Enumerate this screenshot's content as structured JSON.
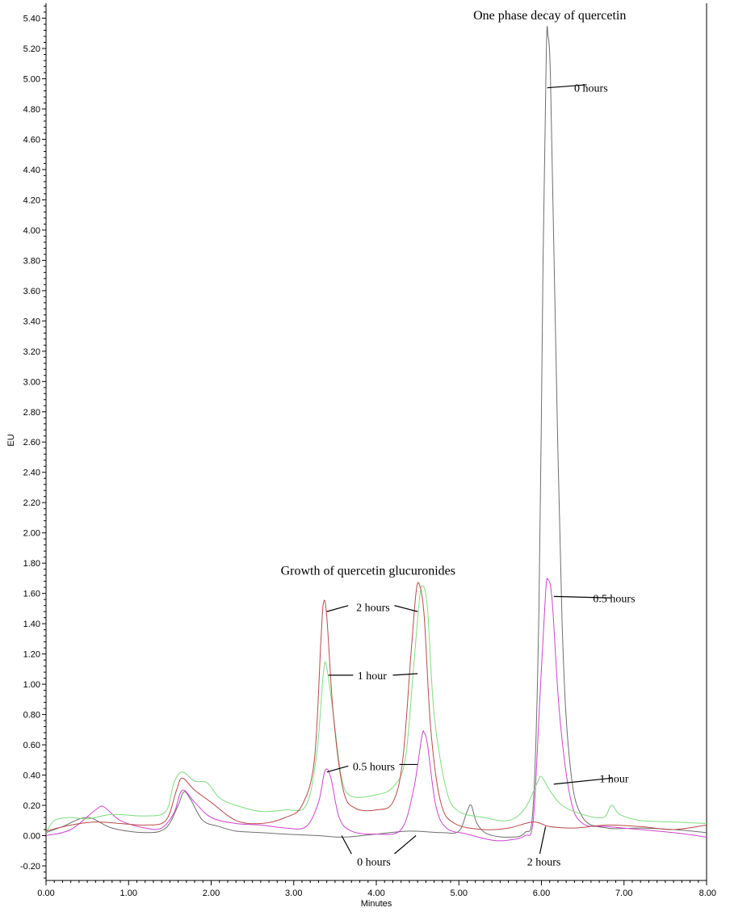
{
  "chart_data": {
    "type": "line",
    "title": "",
    "xlabel": "Minutes",
    "ylabel": "EU",
    "xlim": [
      0,
      8
    ],
    "ylim": [
      -0.28,
      5.5
    ],
    "x_ticks": [
      "0.00",
      "1.00",
      "2.00",
      "3.00",
      "4.00",
      "5.00",
      "6.00",
      "7.00",
      "8.00"
    ],
    "y_ticks": [
      "-0.20",
      "0.00",
      "0.20",
      "0.40",
      "0.60",
      "0.80",
      "1.00",
      "1.20",
      "1.40",
      "1.60",
      "1.80",
      "2.00",
      "2.20",
      "2.40",
      "2.60",
      "2.80",
      "3.00",
      "3.20",
      "3.40",
      "3.60",
      "3.80",
      "4.00",
      "4.20",
      "4.40",
      "4.60",
      "4.80",
      "5.00",
      "5.20",
      "5.40"
    ],
    "grid": false,
    "series": [
      {
        "color": "#6e6e6e",
        "points": [
          [
            0,
            0.02
          ],
          [
            0.2,
            0.06
          ],
          [
            0.5,
            0.12
          ],
          [
            0.8,
            0.05
          ],
          [
            1.2,
            0.02
          ],
          [
            1.45,
            0.05
          ],
          [
            1.6,
            0.2
          ],
          [
            1.67,
            0.29
          ],
          [
            1.75,
            0.24
          ],
          [
            1.9,
            0.1
          ],
          [
            2.1,
            0.06
          ],
          [
            2.3,
            0.03
          ],
          [
            2.6,
            0.02
          ],
          [
            2.9,
            0.01
          ],
          [
            3.3,
            0.0
          ],
          [
            3.6,
            -0.01
          ],
          [
            4.0,
            0.01
          ],
          [
            4.4,
            0.03
          ],
          [
            4.8,
            0.02
          ],
          [
            5.0,
            0.03
          ],
          [
            5.1,
            0.16
          ],
          [
            5.15,
            0.2
          ],
          [
            5.22,
            0.08
          ],
          [
            5.35,
            0.01
          ],
          [
            5.6,
            -0.01
          ],
          [
            5.8,
            0.02
          ],
          [
            5.9,
            0.2
          ],
          [
            5.97,
            1.5
          ],
          [
            6.02,
            3.8
          ],
          [
            6.06,
            5.2
          ],
          [
            6.08,
            5.28
          ],
          [
            6.11,
            5.0
          ],
          [
            6.16,
            3.6
          ],
          [
            6.25,
            1.4
          ],
          [
            6.35,
            0.45
          ],
          [
            6.5,
            0.12
          ],
          [
            6.8,
            0.05
          ],
          [
            7.2,
            0.05
          ],
          [
            7.6,
            0.04
          ],
          [
            8.0,
            0.02
          ]
        ]
      },
      {
        "color": "#cc44cc",
        "points": [
          [
            0,
            0.0
          ],
          [
            0.3,
            0.04
          ],
          [
            0.6,
            0.17
          ],
          [
            0.7,
            0.19
          ],
          [
            0.9,
            0.1
          ],
          [
            1.2,
            0.05
          ],
          [
            1.4,
            0.05
          ],
          [
            1.55,
            0.15
          ],
          [
            1.65,
            0.3
          ],
          [
            1.8,
            0.22
          ],
          [
            2.0,
            0.12
          ],
          [
            2.3,
            0.08
          ],
          [
            2.6,
            0.07
          ],
          [
            2.9,
            0.05
          ],
          [
            3.15,
            0.06
          ],
          [
            3.3,
            0.22
          ],
          [
            3.38,
            0.43
          ],
          [
            3.45,
            0.38
          ],
          [
            3.55,
            0.12
          ],
          [
            3.7,
            0.03
          ],
          [
            4.0,
            0.01
          ],
          [
            4.3,
            0.04
          ],
          [
            4.45,
            0.3
          ],
          [
            4.55,
            0.65
          ],
          [
            4.58,
            0.68
          ],
          [
            4.62,
            0.6
          ],
          [
            4.72,
            0.2
          ],
          [
            4.85,
            0.05
          ],
          [
            5.1,
            0.01
          ],
          [
            5.4,
            -0.03
          ],
          [
            5.6,
            -0.03
          ],
          [
            5.8,
            0.0
          ],
          [
            5.9,
            0.1
          ],
          [
            5.98,
            0.9
          ],
          [
            6.05,
            1.6
          ],
          [
            6.08,
            1.69
          ],
          [
            6.13,
            1.55
          ],
          [
            6.22,
            0.8
          ],
          [
            6.35,
            0.25
          ],
          [
            6.5,
            0.08
          ],
          [
            6.8,
            0.06
          ],
          [
            7.2,
            0.04
          ],
          [
            7.6,
            0.02
          ],
          [
            8.0,
            -0.01
          ]
        ]
      },
      {
        "color": "#7fdc7f",
        "points": [
          [
            0,
            0.02
          ],
          [
            0.1,
            0.1
          ],
          [
            0.3,
            0.12
          ],
          [
            0.5,
            0.11
          ],
          [
            0.8,
            0.14
          ],
          [
            1.2,
            0.13
          ],
          [
            1.45,
            0.16
          ],
          [
            1.55,
            0.35
          ],
          [
            1.65,
            0.42
          ],
          [
            1.8,
            0.36
          ],
          [
            1.95,
            0.35
          ],
          [
            2.1,
            0.25
          ],
          [
            2.3,
            0.2
          ],
          [
            2.6,
            0.16
          ],
          [
            2.9,
            0.17
          ],
          [
            3.15,
            0.2
          ],
          [
            3.28,
            0.55
          ],
          [
            3.36,
            1.08
          ],
          [
            3.4,
            1.11
          ],
          [
            3.48,
            0.8
          ],
          [
            3.58,
            0.38
          ],
          [
            3.7,
            0.26
          ],
          [
            4.0,
            0.27
          ],
          [
            4.2,
            0.32
          ],
          [
            4.35,
            0.5
          ],
          [
            4.45,
            1.1
          ],
          [
            4.52,
            1.55
          ],
          [
            4.56,
            1.65
          ],
          [
            4.62,
            1.5
          ],
          [
            4.7,
            0.8
          ],
          [
            4.85,
            0.3
          ],
          [
            5.0,
            0.16
          ],
          [
            5.3,
            0.12
          ],
          [
            5.6,
            0.1
          ],
          [
            5.8,
            0.18
          ],
          [
            5.95,
            0.35
          ],
          [
            6.0,
            0.39
          ],
          [
            6.1,
            0.3
          ],
          [
            6.25,
            0.2
          ],
          [
            6.5,
            0.14
          ],
          [
            6.75,
            0.12
          ],
          [
            6.85,
            0.2
          ],
          [
            6.95,
            0.14
          ],
          [
            7.2,
            0.1
          ],
          [
            7.6,
            0.09
          ],
          [
            8.0,
            0.08
          ]
        ]
      },
      {
        "color": "#b84a4a",
        "points": [
          [
            0,
            0.03
          ],
          [
            0.3,
            0.07
          ],
          [
            0.6,
            0.09
          ],
          [
            0.9,
            0.08
          ],
          [
            1.2,
            0.07
          ],
          [
            1.45,
            0.1
          ],
          [
            1.58,
            0.3
          ],
          [
            1.65,
            0.38
          ],
          [
            1.8,
            0.3
          ],
          [
            2.0,
            0.22
          ],
          [
            2.3,
            0.1
          ],
          [
            2.6,
            0.08
          ],
          [
            2.9,
            0.12
          ],
          [
            3.1,
            0.2
          ],
          [
            3.25,
            0.5
          ],
          [
            3.33,
            1.3
          ],
          [
            3.36,
            1.54
          ],
          [
            3.4,
            1.45
          ],
          [
            3.48,
            0.8
          ],
          [
            3.6,
            0.3
          ],
          [
            3.75,
            0.18
          ],
          [
            4.0,
            0.17
          ],
          [
            4.2,
            0.22
          ],
          [
            4.32,
            0.5
          ],
          [
            4.42,
            1.2
          ],
          [
            4.48,
            1.6
          ],
          [
            4.52,
            1.66
          ],
          [
            4.58,
            1.45
          ],
          [
            4.66,
            0.7
          ],
          [
            4.78,
            0.22
          ],
          [
            4.95,
            0.08
          ],
          [
            5.3,
            0.04
          ],
          [
            5.6,
            0.05
          ],
          [
            5.9,
            0.09
          ],
          [
            6.1,
            0.06
          ],
          [
            6.4,
            0.05
          ],
          [
            6.8,
            0.07
          ],
          [
            7.2,
            0.06
          ],
          [
            7.6,
            0.04
          ],
          [
            8.0,
            0.07
          ]
        ]
      }
    ],
    "annotations": [
      {
        "text": "One phase decay of quercetin",
        "x": 6.1,
        "y": 5.42,
        "style": "title"
      },
      {
        "text": "Growth of quercetin glucuronides",
        "x": 3.9,
        "y": 1.75,
        "style": "title"
      },
      {
        "text": "0 hours",
        "x": 6.6,
        "y": 4.94,
        "line": [
          [
            6.07,
            4.94
          ],
          [
            6.55,
            4.96
          ]
        ]
      },
      {
        "text": "0.5 hours",
        "x": 6.88,
        "y": 1.57,
        "line": [
          [
            6.15,
            1.58
          ],
          [
            6.85,
            1.57
          ]
        ]
      },
      {
        "text": "1 hour",
        "x": 6.88,
        "y": 0.38,
        "line": [
          [
            6.15,
            0.34
          ],
          [
            6.85,
            0.38
          ]
        ]
      },
      {
        "text": "2 hours",
        "x": 6.03,
        "y": -0.17,
        "line": [
          [
            6.05,
            0.06
          ],
          [
            5.98,
            -0.12
          ]
        ]
      },
      {
        "text": "0 hours",
        "x": 3.97,
        "y": -0.17,
        "line": [
          [
            3.58,
            0.0
          ],
          [
            3.7,
            -0.12
          ]
        ],
        "line2": [
          [
            4.22,
            -0.12
          ],
          [
            4.48,
            0.0
          ]
        ]
      },
      {
        "text": "2 hours",
        "x": 3.96,
        "y": 1.51,
        "line": [
          [
            3.4,
            1.48
          ],
          [
            3.66,
            1.52
          ]
        ],
        "line2": [
          [
            4.22,
            1.52
          ],
          [
            4.5,
            1.48
          ]
        ]
      },
      {
        "text": "1 hour",
        "x": 3.95,
        "y": 1.06,
        "line": [
          [
            3.42,
            1.06
          ],
          [
            3.72,
            1.06
          ]
        ],
        "line2": [
          [
            4.2,
            1.06
          ],
          [
            4.5,
            1.07
          ]
        ]
      },
      {
        "text": "0.5 hours",
        "x": 3.97,
        "y": 0.46,
        "line": [
          [
            3.4,
            0.42
          ],
          [
            3.66,
            0.46
          ]
        ],
        "line2": [
          [
            4.28,
            0.47
          ],
          [
            4.5,
            0.47
          ]
        ]
      }
    ]
  }
}
